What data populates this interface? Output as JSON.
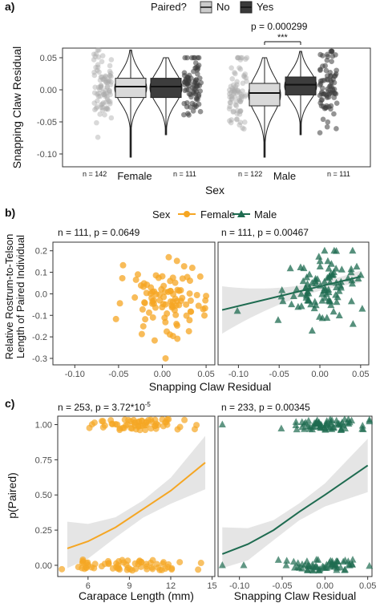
{
  "panel_labels": [
    "a)",
    "b)",
    "c)"
  ],
  "legend_a": {
    "title": "Paired?",
    "items": [
      "No",
      "Yes"
    ],
    "colors": [
      "#cccccc",
      "#3a3a3a"
    ]
  },
  "legend_b": {
    "title": "Sex",
    "items": [
      "Female",
      "Male"
    ],
    "colors": [
      "#f5a623",
      "#1e6b50"
    ]
  },
  "chart_data": [
    {
      "type": "box",
      "panel": "a",
      "ylabel": "Snapping Claw Residual",
      "xlabel": "Sex",
      "categories": [
        "Female",
        "Male"
      ],
      "ylim": [
        -0.12,
        0.065
      ],
      "yticks": [
        "-0.10",
        "-0.05",
        "0.00",
        "0.05"
      ],
      "groups": [
        {
          "sex": "Female",
          "paired": "No",
          "n_label": "n = 142",
          "min": -0.105,
          "q1": -0.012,
          "median": 0.005,
          "q3": 0.018,
          "max": 0.062
        },
        {
          "sex": "Female",
          "paired": "Yes",
          "n_label": "n = 111",
          "min": -0.07,
          "q1": -0.012,
          "median": 0.005,
          "q3": 0.018,
          "max": 0.05
        },
        {
          "sex": "Male",
          "paired": "No",
          "n_label": "n = 122",
          "min": -0.105,
          "q1": -0.025,
          "median": -0.005,
          "q3": 0.01,
          "max": 0.05
        },
        {
          "sex": "Male",
          "paired": "Yes",
          "n_label": "n = 111",
          "min": -0.07,
          "q1": -0.008,
          "median": 0.008,
          "q3": 0.02,
          "max": 0.06
        }
      ],
      "annotations": {
        "p_text": "p = 0.000299",
        "stars": "***"
      }
    },
    {
      "type": "scatter",
      "panel": "b",
      "ylabel_lines": [
        "Relative Rostrum-to-Telson",
        "Length of Paired Individual"
      ],
      "xlabel": "Snapping Claw Residual",
      "xlim": [
        -0.125,
        0.06
      ],
      "ylim": [
        -0.33,
        0.24
      ],
      "xticks": [
        "-0.10",
        "-0.05",
        "0.00",
        "0.05"
      ],
      "yticks": [
        "-0.3",
        "-0.2",
        "-0.1",
        "0.0",
        "0.1",
        "0.2"
      ],
      "facets": [
        {
          "sex": "Female",
          "label": "n = 111, p = 0.0649",
          "fit": null
        },
        {
          "sex": "Male",
          "label": "n = 111, p = 0.00467",
          "fit": {
            "x": [
              -0.12,
              0.05
            ],
            "y": [
              -0.075,
              0.08
            ]
          }
        }
      ]
    },
    {
      "type": "scatter",
      "panel": "c",
      "ylabel": "p(Paired)",
      "yticks": [
        "0.00",
        "0.25",
        "0.50",
        "0.75",
        "1.00"
      ],
      "ylim": [
        -0.08,
        1.06
      ],
      "facets": [
        {
          "sex": "Female",
          "label": "n = 253, p = 3.72*10",
          "label_sup": "-5",
          "xlabel": "Carapace Length (mm)",
          "xlim": [
            3.8,
            15.2
          ],
          "xticks": [
            "6",
            "9",
            "12",
            "15"
          ],
          "fit": {
            "x": [
              4.5,
              6,
              8,
              10,
              12,
              14.5
            ],
            "y": [
              0.12,
              0.17,
              0.27,
              0.4,
              0.53,
              0.73
            ]
          }
        },
        {
          "sex": "Male",
          "label": "n = 233, p = 0.00345",
          "xlabel": "Snapping Claw Residual",
          "xlim": [
            -0.125,
            0.055
          ],
          "xticks": [
            "-0.10",
            "-0.05",
            "0.00",
            "0.05"
          ],
          "fit": {
            "x": [
              -0.12,
              -0.09,
              -0.06,
              -0.03,
              0.0,
              0.05
            ],
            "y": [
              0.08,
              0.15,
              0.25,
              0.38,
              0.5,
              0.71
            ]
          }
        }
      ]
    }
  ]
}
